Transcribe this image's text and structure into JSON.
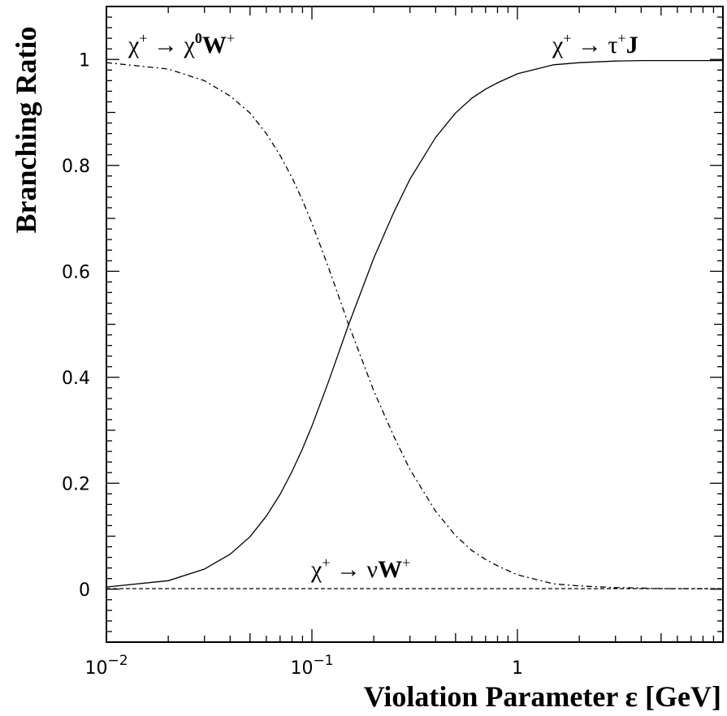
{
  "chart_data": {
    "type": "line",
    "xlabel": "Violation Parameter ε [GeV]",
    "ylabel": "Branching Ratio",
    "x_scale": "log",
    "xlim": [
      0.01,
      10
    ],
    "ylim": [
      -0.1,
      1.1
    ],
    "x_ticks": [
      {
        "value": 0.01,
        "base": "10",
        "exp": "−2"
      },
      {
        "value": 0.1,
        "base": "10",
        "exp": "−1"
      },
      {
        "value": 1,
        "base": "1",
        "exp": ""
      }
    ],
    "y_ticks": [
      {
        "value": 0,
        "label": "0"
      },
      {
        "value": 0.2,
        "label": "0.2"
      },
      {
        "value": 0.4,
        "label": "0.4"
      },
      {
        "value": 0.6,
        "label": "0.6"
      },
      {
        "value": 0.8,
        "label": "0.8"
      },
      {
        "value": 1,
        "label": "1"
      }
    ],
    "grid": false,
    "series": [
      {
        "line_style": "solid",
        "annotation": {
          "pre": "χ",
          "sup1": "+",
          "arrow": " → τ",
          "sup2": "+",
          "post": "J"
        },
        "x": [
          0.01,
          0.02,
          0.03,
          0.04,
          0.05,
          0.06,
          0.07,
          0.08,
          0.09,
          0.1,
          0.12,
          0.15,
          0.2,
          0.25,
          0.3,
          0.4,
          0.5,
          0.6,
          0.7,
          0.8,
          1,
          1.5,
          2,
          3,
          4,
          5,
          10
        ],
        "y": [
          0.004,
          0.016,
          0.038,
          0.066,
          0.099,
          0.138,
          0.179,
          0.222,
          0.265,
          0.308,
          0.39,
          0.497,
          0.625,
          0.711,
          0.774,
          0.853,
          0.899,
          0.927,
          0.944,
          0.956,
          0.973,
          0.99,
          0.994,
          0.997,
          0.998,
          0.998,
          0.998
        ]
      },
      {
        "line_style": "dash-dot",
        "annotation": {
          "pre": "χ",
          "sup1": "+",
          "arrow": " → χ",
          "sup2": "0",
          "post": "W",
          "sup3": "+"
        },
        "x": [
          0.01,
          0.02,
          0.03,
          0.04,
          0.05,
          0.06,
          0.07,
          0.08,
          0.09,
          0.1,
          0.12,
          0.15,
          0.2,
          0.25,
          0.3,
          0.4,
          0.5,
          0.6,
          0.7,
          0.8,
          1,
          1.5,
          2,
          3,
          4,
          5,
          10
        ],
        "y": [
          0.994,
          0.982,
          0.96,
          0.931,
          0.899,
          0.86,
          0.819,
          0.777,
          0.734,
          0.691,
          0.609,
          0.502,
          0.374,
          0.289,
          0.226,
          0.147,
          0.101,
          0.073,
          0.056,
          0.044,
          0.027,
          0.01,
          0.006,
          0.003,
          0.002,
          0.001,
          0.0005
        ]
      },
      {
        "line_style": "dashed",
        "annotation": {
          "pre": "χ",
          "sup1": "+",
          "arrow": " → ν",
          "sup2": "",
          "post": "W",
          "sup3": "+"
        },
        "x": [
          0.01,
          0.1,
          1,
          10
        ],
        "y": [
          0.001,
          0.001,
          0.001,
          0.001
        ]
      }
    ]
  }
}
